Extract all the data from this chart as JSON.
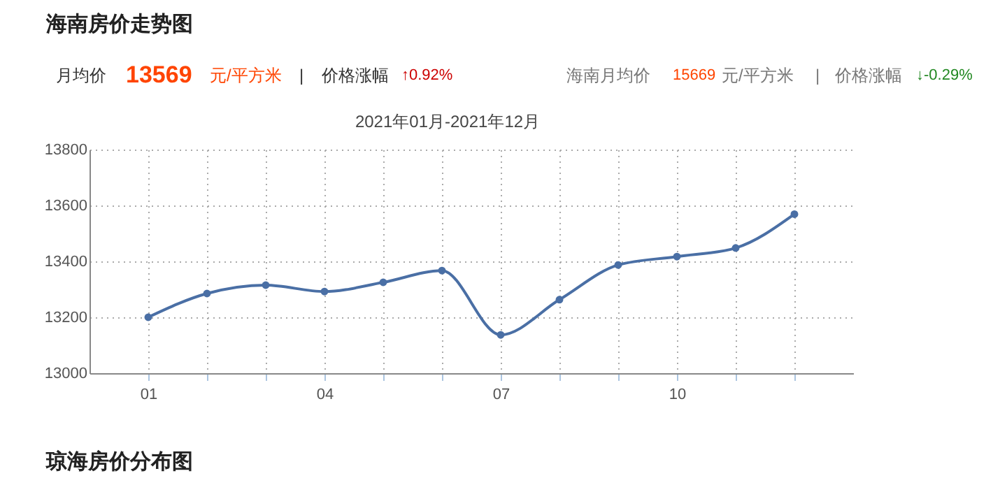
{
  "chart_data": {
    "type": "line",
    "title": "海南房价走势图",
    "subtitle": "2021年01月-2021年12月",
    "categories": [
      "01",
      null,
      null,
      "04",
      null,
      null,
      "07",
      null,
      null,
      "10",
      null,
      null
    ],
    "series": [
      {
        "color": "#4a6fa5",
        "values": [
          13200,
          13285,
          13315,
          13292,
          13325,
          13367,
          13137,
          13263,
          13387,
          13417,
          13448,
          13569
        ]
      }
    ],
    "ylim": [
      13000,
      13800
    ],
    "yticks": [
      13000,
      13200,
      13400,
      13600,
      13800
    ],
    "grid": true,
    "marker": "circle",
    "annotations": [
      "月均价",
      "13569",
      "元/平方米",
      "|",
      "价格涨幅",
      "↑0.92%",
      "海南月均价",
      "15669",
      "元/平方米",
      "|",
      "价格涨幅",
      "↓-0.29%",
      "琼海房价分布图"
    ]
  }
}
